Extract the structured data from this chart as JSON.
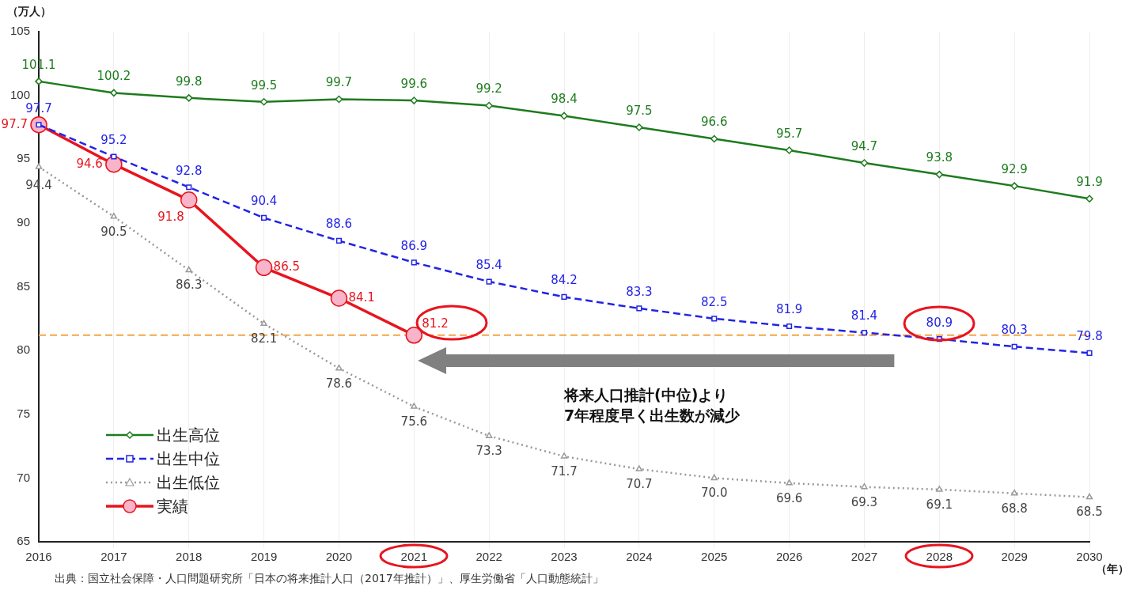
{
  "chart_data": {
    "type": "line",
    "ylabel": "（万人）",
    "xlabel": "（年）",
    "categories": [
      "2016",
      "2017",
      "2018",
      "2019",
      "2020",
      "2021",
      "2022",
      "2023",
      "2024",
      "2025",
      "2026",
      "2027",
      "2028",
      "2029",
      "2030"
    ],
    "series": [
      {
        "name": "出生高位",
        "color": "#1e7b1e",
        "marker": "diamond",
        "line_style": "solid",
        "values": [
          101.1,
          100.2,
          99.8,
          99.5,
          99.7,
          99.6,
          99.2,
          98.4,
          97.5,
          96.6,
          95.7,
          94.7,
          93.8,
          92.9,
          91.9
        ],
        "value_labels": [
          "101.1",
          "100.2",
          "99.8",
          "99.5",
          "99.7",
          "99.6",
          "99.2",
          "98.4",
          "97.5",
          "96.6",
          "95.7",
          "94.7",
          "93.8",
          "92.9",
          "91.9"
        ]
      },
      {
        "name": "出生中位",
        "color": "#2323e6",
        "marker": "square",
        "line_style": "dashed",
        "values": [
          97.7,
          95.2,
          92.8,
          90.4,
          88.6,
          86.9,
          85.4,
          84.2,
          83.3,
          82.5,
          81.9,
          81.4,
          80.9,
          80.3,
          79.8
        ],
        "value_labels": [
          "97.7",
          "95.2",
          "92.8",
          "90.4",
          "88.6",
          "86.9",
          "85.4",
          "84.2",
          "83.3",
          "82.5",
          "81.9",
          "81.4",
          "80.9",
          "80.3",
          "79.8"
        ]
      },
      {
        "name": "出生低位",
        "color": "#999999",
        "marker": "triangle",
        "line_style": "dotted",
        "values": [
          94.4,
          90.5,
          86.3,
          82.1,
          78.6,
          75.6,
          73.3,
          71.7,
          70.7,
          70.0,
          69.6,
          69.3,
          69.1,
          68.8,
          68.5
        ],
        "value_labels": [
          "94.4",
          "90.5",
          "86.3",
          "82.1",
          "78.6",
          "75.6",
          "73.3",
          "71.7",
          "70.7",
          "70.0",
          "69.6",
          "69.3",
          "69.1",
          "68.8",
          "68.5"
        ]
      },
      {
        "name": "実績",
        "color": "#e8141e",
        "marker": "circle",
        "line_style": "solid",
        "values": [
          97.7,
          94.6,
          91.8,
          86.5,
          84.1,
          81.2,
          null,
          null,
          null,
          null,
          null,
          null,
          null,
          null,
          null
        ],
        "value_labels": [
          "97.7",
          "94.6",
          "91.8",
          "86.5",
          "84.1",
          "81.2",
          null,
          null,
          null,
          null,
          null,
          null,
          null,
          null,
          null
        ]
      }
    ],
    "ylim": [
      65,
      105
    ],
    "yticks": [
      65,
      70,
      75,
      80,
      85,
      90,
      95,
      100,
      105
    ],
    "ref_lines": [
      {
        "axis": "y",
        "value": 81.2,
        "color": "#f4a646",
        "line_style": "dashed"
      }
    ],
    "annotations": [
      "将来人口推計(中位)より\n7年程度早く出生数が減少",
      "出典：国立社会保障・人口問題研究所「日本の将来推計人口（2017年推計）」、厚生労働省「人口動態統計」"
    ],
    "grid": "x",
    "legend": "bottom left"
  }
}
